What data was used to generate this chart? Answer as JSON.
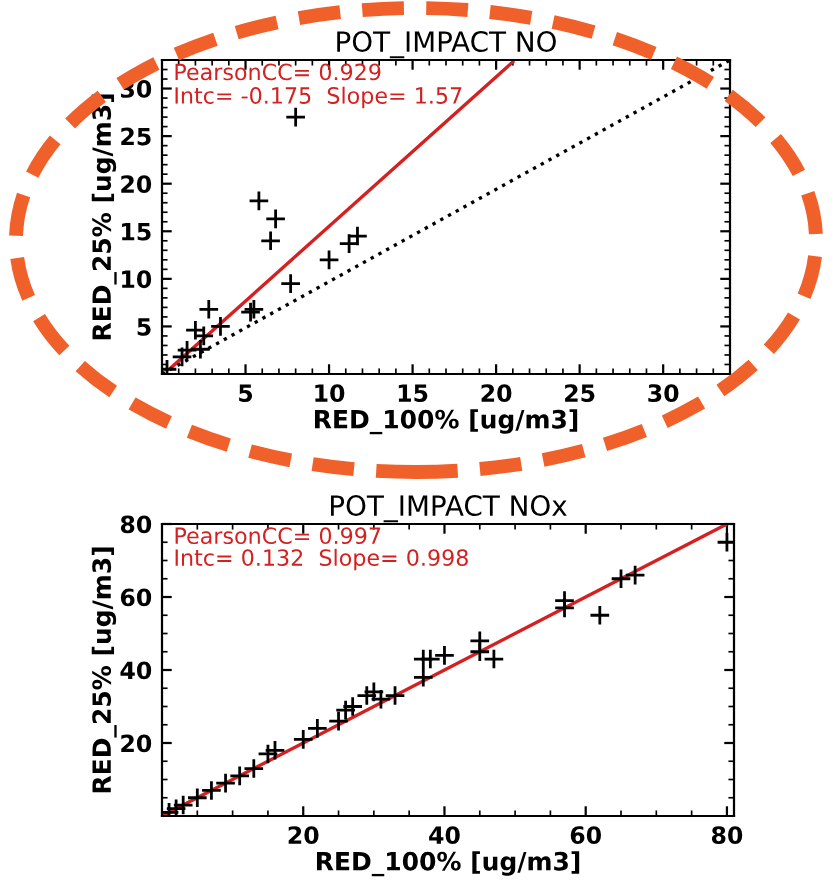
{
  "chart_data": [
    {
      "type": "scatter",
      "title": "POT_IMPACT NO",
      "xlabel": "RED_100% [ug/m3]",
      "ylabel": "RED_25% [ug/m3]",
      "xlim": [
        0,
        34
      ],
      "ylim": [
        0,
        33
      ],
      "xticks": [
        5,
        10,
        15,
        20,
        25,
        30
      ],
      "yticks": [
        5,
        10,
        15,
        20,
        25,
        30
      ],
      "marker": "cross",
      "grid": false,
      "legend": false,
      "annotations": [
        "PearsonCC= 0.929",
        "Intc= -0.175  Slope= 1.57"
      ],
      "series": [
        {
          "color": "#000000",
          "x": [
            8,
            5.8,
            6.8,
            6.5,
            7.7,
            10,
            11.2,
            11.7,
            5.5,
            5.3,
            2.8,
            2,
            3.5,
            2.5,
            1.5,
            0.3,
            1.2,
            2.3
          ],
          "values": [
            27,
            18.2,
            16.3,
            14,
            9.5,
            12,
            13.7,
            14.5,
            6.8,
            6.5,
            6.8,
            4.6,
            5,
            4,
            2.5,
            0.5,
            1.8,
            2.6
          ]
        },
        {
          "type": "line",
          "marker": "none",
          "color": "#d42020",
          "line_style": "solid",
          "x": [
            0.5,
            21
          ],
          "values": [
            0.6,
            32.8
          ]
        },
        {
          "type": "line",
          "marker": "none",
          "color": "#000000",
          "line_style": "dotted",
          "x": [
            0,
            34
          ],
          "values": [
            0,
            33
          ]
        }
      ]
    },
    {
      "type": "scatter",
      "title": "POT_IMPACT NOx",
      "xlabel": "RED_100% [ug/m3]",
      "ylabel": "RED_25% [ug/m3]",
      "xlim": [
        0,
        81
      ],
      "ylim": [
        0,
        80
      ],
      "xticks": [
        20,
        40,
        60,
        80
      ],
      "yticks": [
        20,
        40,
        60,
        80
      ],
      "marker": "cross",
      "grid": false,
      "legend": false,
      "annotations": [
        "PearsonCC= 0.997",
        "Intc= 0.132  Slope= 0.998"
      ],
      "series": [
        {
          "color": "#000000",
          "x": [
            1,
            2,
            3,
            5,
            7,
            9,
            11,
            13,
            15,
            16,
            20,
            22,
            25,
            26,
            27,
            29,
            30,
            31,
            33,
            37,
            37,
            38,
            40,
            45,
            45,
            47,
            57,
            57,
            62,
            65,
            67,
            80
          ],
          "values": [
            1,
            2,
            3,
            5,
            7,
            9,
            11,
            13,
            17,
            18,
            21,
            24,
            26,
            29,
            30,
            33,
            34,
            32,
            33,
            38,
            43,
            43,
            44,
            45,
            48,
            43,
            59,
            57,
            55,
            65,
            66,
            75
          ]
        },
        {
          "type": "line",
          "marker": "none",
          "color": "#d42020",
          "line_style": "solid",
          "x": [
            0,
            80
          ],
          "values": [
            0,
            80
          ]
        }
      ]
    }
  ]
}
